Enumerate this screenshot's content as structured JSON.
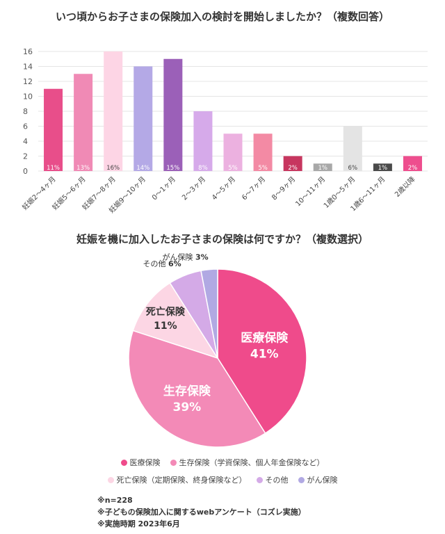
{
  "chart_data": [
    {
      "type": "bar",
      "title": "いつ頃からお子さまの保険加入の検討を開始しましたか？（複数回答）",
      "categories": [
        "妊娠2〜4ヶ月",
        "妊娠5〜6ヶ月",
        "妊娠7〜8ヶ月",
        "妊娠9〜10ヶ月",
        "0〜1ヶ月",
        "2〜3ヶ月",
        "4〜5ヶ月",
        "6〜7ヶ月",
        "8〜9ヶ月",
        "10〜11ヶ月",
        "1歳0〜5ヶ月",
        "1歳6〜11ヶ月",
        "2歳以降"
      ],
      "values": [
        11,
        13,
        16,
        14,
        15,
        8,
        5,
        5,
        2,
        1,
        6,
        1,
        2
      ],
      "data_labels": [
        "11%",
        "13%",
        "16%",
        "14%",
        "15%",
        "8%",
        "5%",
        "5%",
        "2%",
        "1%",
        "6%",
        "1%",
        "2%"
      ],
      "colors": [
        "#e84e8a",
        "#f08ab5",
        "#fdd5e5",
        "#b4a9e6",
        "#9b60b8",
        "#d6aaea",
        "#ecb1e0",
        "#f38aa4",
        "#c7365f",
        "#a8a8a8",
        "#e4e4e4",
        "#4a4a4a",
        "#ee4e8e"
      ],
      "ylim": [
        0,
        16
      ],
      "yticks": [
        0,
        2,
        4,
        6,
        8,
        10,
        12,
        14,
        16
      ],
      "grid": true,
      "xlabel": "",
      "ylabel": ""
    },
    {
      "type": "pie",
      "title": "妊娠を機に加入したお子さまの保険は何ですか？（複数選択）",
      "labels": [
        "医療保険",
        "生存保険",
        "死亡保険",
        "その他",
        "がん保険"
      ],
      "values": [
        41,
        39,
        11,
        6,
        3
      ],
      "value_labels": [
        "41%",
        "39%",
        "11%",
        "6%",
        "3%"
      ],
      "colors": [
        "#ef4b8b",
        "#f38ab7",
        "#fcd6e4",
        "#d4aae7",
        "#b1a9e3"
      ],
      "legend": [
        "医療保険",
        "生存保険（学資保険、個人年金保険など）",
        "死亡保険（定期保険、終身保険など）",
        "その他",
        "がん保険"
      ],
      "legend_position": "bottom"
    }
  ],
  "notes": [
    "※n=228",
    "※子どもの保険加入に関するwebアンケート（コズレ実施）",
    "※実施時期 2023年6月"
  ]
}
